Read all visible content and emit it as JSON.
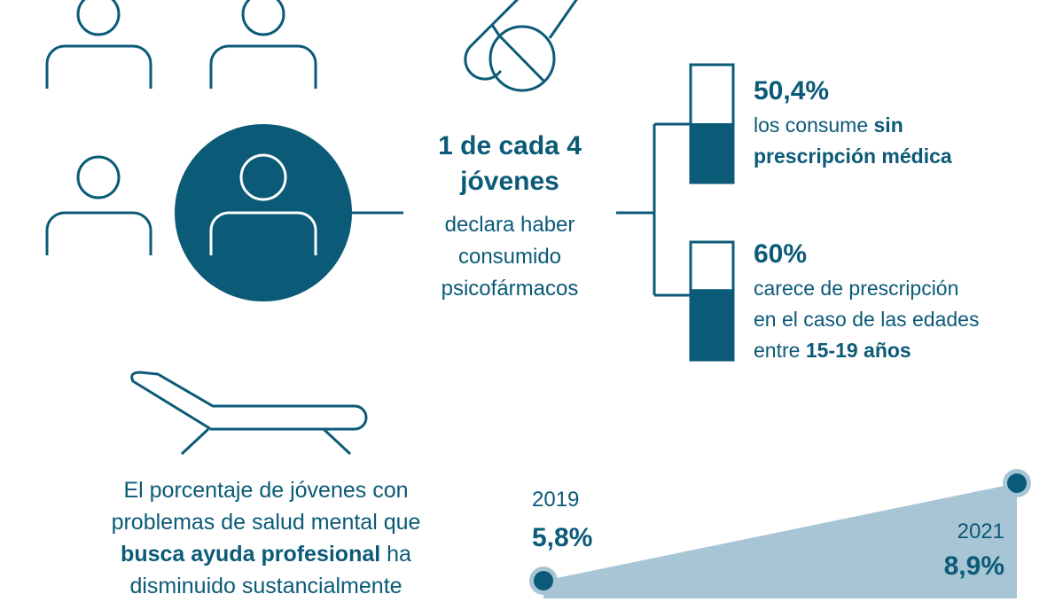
{
  "colors": {
    "primary": "#0b5a78",
    "fill": "#a8c5d6",
    "halo": "#a8c5d6"
  },
  "center": {
    "headline_1": "1 de cada 4",
    "headline_2": "jóvenes",
    "line_1": "declara haber",
    "line_2": "consumido",
    "line_3": "psicofármacos"
  },
  "stat1": {
    "value": "50,4%",
    "fill_percent": 50.4,
    "text_pre": "los consume ",
    "text_bold_1": "sin",
    "text_bold_2": "prescripción médica"
  },
  "stat2": {
    "value": "60%",
    "fill_percent": 60,
    "line_1": "carece de prescripción",
    "line_2": "en el caso de las edades",
    "line_3_pre": "entre ",
    "line_3_bold": "15-19 años"
  },
  "paragraph": {
    "line_1": "El porcentaje de jóvenes con",
    "line_2": "problemas de salud mental que",
    "line_3_bold": "busca ayuda profesional",
    "line_3_post": " ha",
    "line_4": "disminuido sustancialmente"
  },
  "chart_data": {
    "type": "area",
    "x": [
      "2019",
      "2021"
    ],
    "values": [
      5.8,
      8.9
    ],
    "labels": [
      "5,8%",
      "8,9%"
    ]
  }
}
